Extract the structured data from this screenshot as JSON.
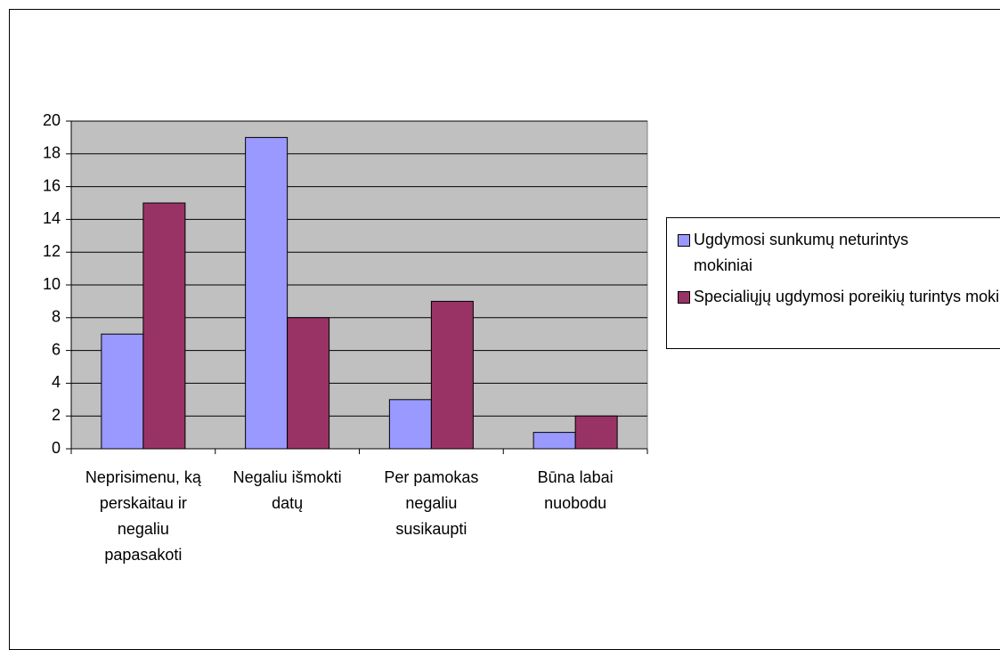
{
  "chart_data": {
    "type": "bar",
    "categories": [
      "Neprisimenu, ką perskaitau ir negaliu papasakoti",
      "Negaliu išmokti datų",
      "Per pamokas negaliu susikaupti",
      "Būna labai nuobodu"
    ],
    "series": [
      {
        "name": "Ugdymosi sunkumų neturintys mokiniai",
        "color": "#9999ff",
        "values": [
          7,
          19,
          3,
          1
        ]
      },
      {
        "name": "Specialiųjų ugdymosi poreikių turintys mokiniai",
        "color": "#993366",
        "values": [
          15,
          8,
          9,
          2
        ]
      }
    ],
    "ylim": [
      0,
      20
    ],
    "yticks": [
      0,
      2,
      4,
      6,
      8,
      10,
      12,
      14,
      16,
      18,
      20
    ],
    "grid": true,
    "legend": "right"
  }
}
